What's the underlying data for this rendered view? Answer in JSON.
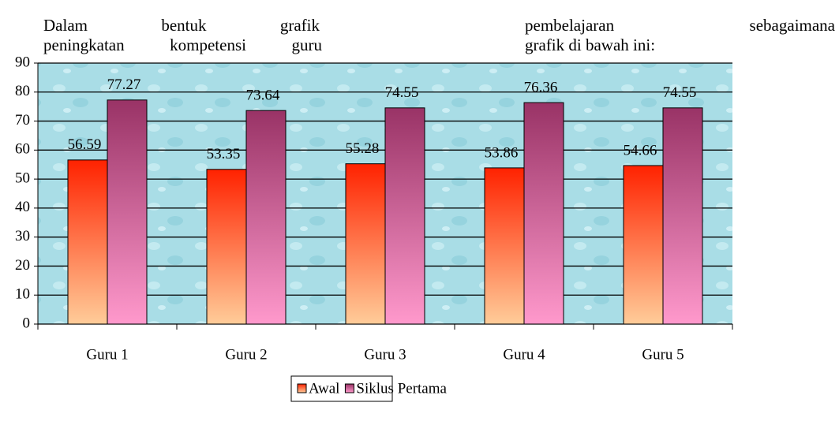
{
  "chart_data": {
    "type": "bar",
    "annotations": [
      "Dalam bentuk grafik",
      "pembelajaran sebagaimana",
      "peningkatan kompetensi guru",
      "grafik di bawah ini:"
    ],
    "categories": [
      "Guru 1",
      "Guru 2",
      "Guru 3",
      "Guru 4",
      "Guru 5"
    ],
    "series": [
      {
        "name": "Awal",
        "color": "#ff3300",
        "values": [
          56.59,
          53.35,
          55.28,
          53.86,
          54.66
        ]
      },
      {
        "name": "Siklus Pertama",
        "color": "#993366",
        "values": [
          77.27,
          73.64,
          74.55,
          76.36,
          74.55
        ]
      }
    ],
    "ylim": [
      0,
      90
    ],
    "yticks": [
      0,
      10,
      20,
      30,
      40,
      50,
      60,
      70,
      80,
      90
    ],
    "grid": true,
    "legend": "bottom"
  }
}
